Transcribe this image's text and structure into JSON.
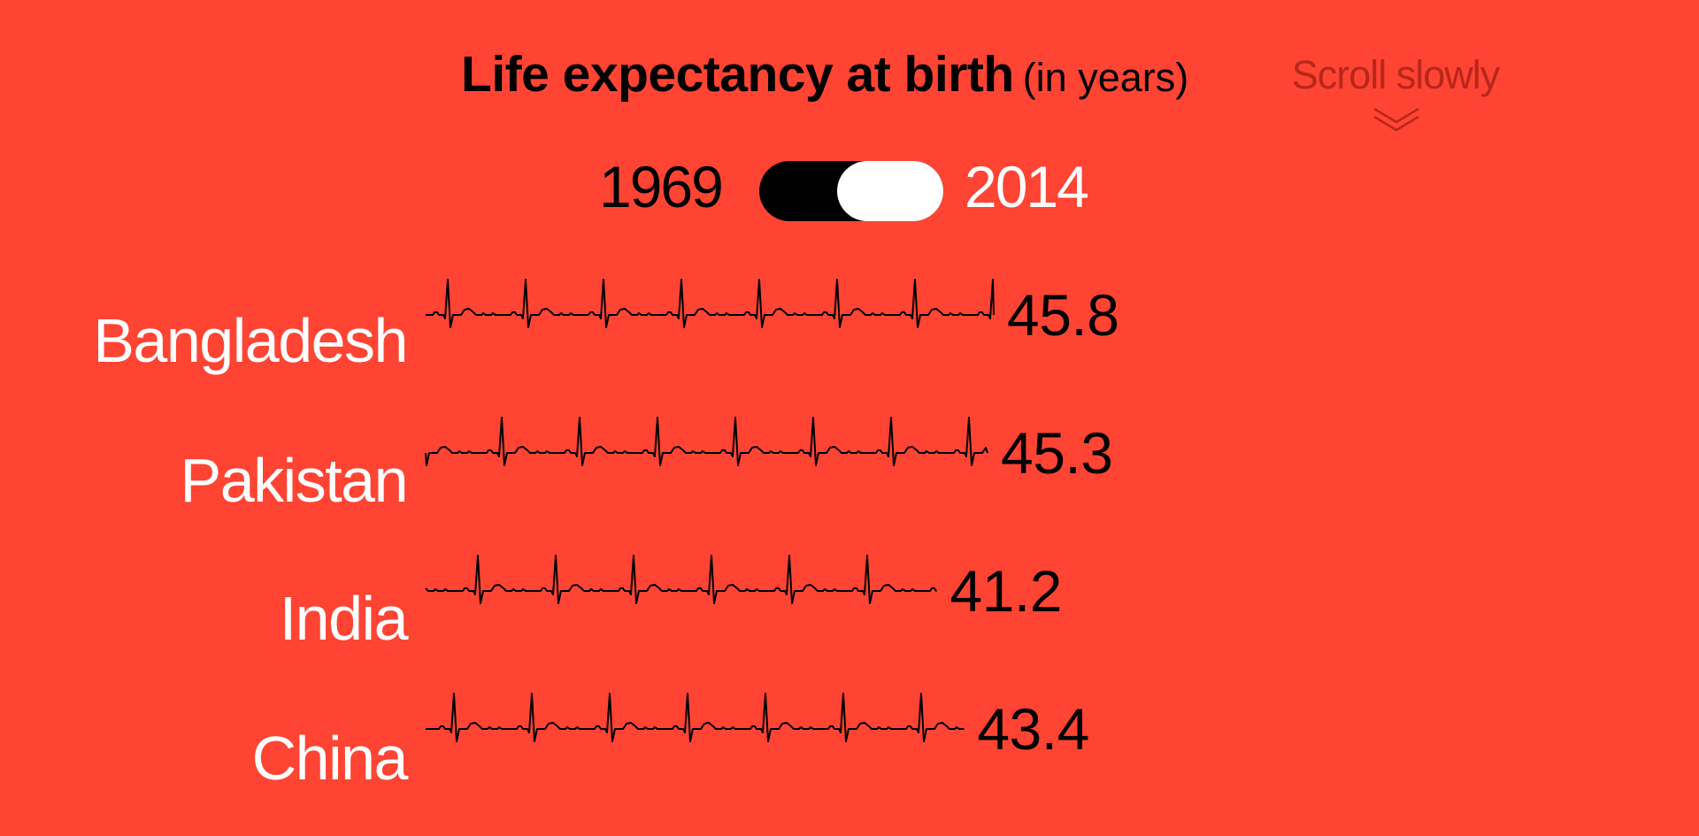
{
  "title": {
    "bold": "Life expectancy at birth",
    "sub": "(in years)"
  },
  "scroll_hint": {
    "label": "Scroll slowly",
    "icon": "double-chevron-down-icon"
  },
  "year_toggle": {
    "left_label": "1969",
    "right_label": "2014",
    "selected": "2014"
  },
  "colors": {
    "background": "#ff4433",
    "ink": "#000000",
    "label": "#ffffff"
  },
  "chart_data": {
    "type": "bar",
    "year": "1969",
    "categories": [
      "Bangladesh",
      "Pakistan",
      "India",
      "China"
    ],
    "values": [
      45.8,
      45.3,
      41.2,
      43.4
    ],
    "value_labels": [
      "45.8",
      "45.3",
      "41.2",
      "43.4"
    ],
    "title": "Life expectancy at birth (in years)",
    "mark": "heartbeat line, length proportional to value"
  }
}
